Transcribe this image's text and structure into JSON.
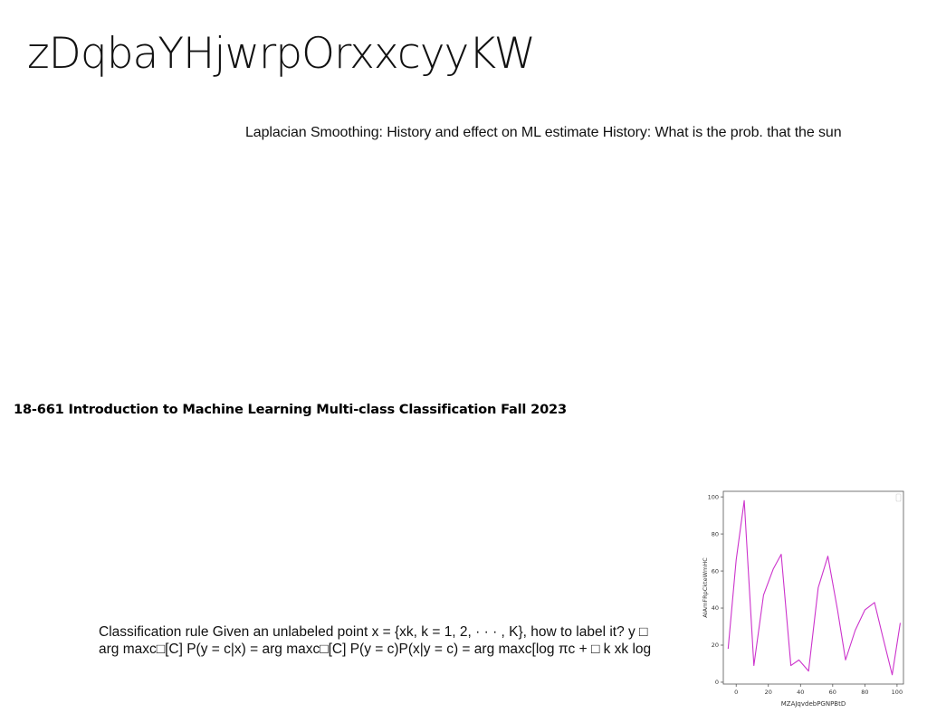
{
  "title": "zDqbaYHjwrpOrxxcyyKW",
  "subtitle": "Laplacian Smoothing: History and effect on ML estimate History: What is the prob. that the sun",
  "course_line": "18-661 Introduction to Machine Learning Multi-class Classification Fall 2023",
  "classification_rule": {
    "line1": "Classification rule Given an unlabeled point x = {xk, k = 1, 2, · · · , K}, how to label it? y □",
    "line2": "arg maxc□[C] P(y = c|x) = arg maxc□[C] P(y = c)P(x|y = c) = arg maxc[log πc + □ k xk log"
  },
  "chart_data": {
    "type": "line",
    "xlabel": "MZAJqvdebPGNPBtD",
    "ylabel": "AIAmFRpCkteWmHC",
    "xlim": [
      -8,
      104
    ],
    "ylim": [
      -1,
      103
    ],
    "xticks": [
      0,
      20,
      40,
      60,
      80,
      100
    ],
    "yticks": [
      0,
      20,
      40,
      60,
      80,
      100
    ],
    "line_color": "#cc33cc",
    "series": [
      {
        "x": [
          -5,
          0,
          5,
          11,
          17,
          23,
          28,
          34,
          39,
          45,
          51,
          57,
          63,
          68,
          74,
          80,
          86,
          91,
          97,
          102
        ],
        "y": [
          18,
          66,
          98,
          9,
          47,
          61,
          69,
          9,
          12,
          6,
          51,
          68,
          39,
          12,
          28,
          39,
          43,
          25,
          4,
          32
        ]
      }
    ]
  }
}
